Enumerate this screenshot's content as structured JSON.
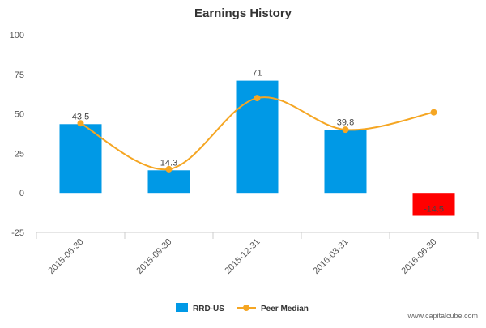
{
  "chart_data": {
    "type": "bar",
    "title": "Earnings History",
    "categories": [
      "2015-06-30",
      "2015-09-30",
      "2015-12-31",
      "2016-03-31",
      "2016-06-30"
    ],
    "series": [
      {
        "name": "RRD-US",
        "kind": "bar",
        "values": [
          43.5,
          14.3,
          71,
          39.8,
          -14.5
        ],
        "labels": [
          "43.5",
          "14.3",
          "71",
          "39.8",
          "-14.5"
        ],
        "color": "#0099e6",
        "negative_color": "#ff0000"
      },
      {
        "name": "Peer Median",
        "kind": "line",
        "smooth": true,
        "values": [
          44,
          15,
          60,
          40,
          51
        ],
        "color": "#f5a623"
      }
    ],
    "ylim": [
      -25,
      100
    ],
    "yticks": [
      100,
      75,
      50,
      25,
      0,
      -25
    ],
    "xlabel": "",
    "ylabel": "",
    "grid": false,
    "legend": "bottom-center"
  },
  "watermark": "www.capitalcube.com"
}
